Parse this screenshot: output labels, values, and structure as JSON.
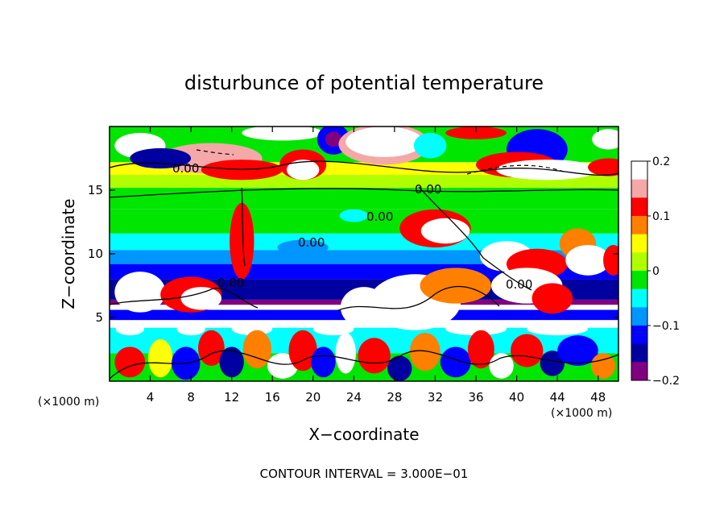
{
  "chart_data": {
    "type": "heatmap",
    "title": "disturbunce of potential temperature",
    "xlabel": "X−coordinate",
    "ylabel": "Z−coordinate",
    "x_unit_left": "(×1000 m)",
    "x_unit_right": "(×1000 m)",
    "xlim": [
      0,
      50
    ],
    "ylim": [
      0,
      20
    ],
    "x_ticks": [
      4,
      8,
      12,
      16,
      20,
      24,
      28,
      32,
      36,
      40,
      44,
      48
    ],
    "y_ticks": [
      5,
      10,
      15
    ],
    "x_tick_labels": [
      "4",
      "8",
      "12",
      "16",
      "20",
      "24",
      "28",
      "32",
      "36",
      "40",
      "44",
      "48"
    ],
    "y_tick_labels": [
      "5",
      "10",
      "15"
    ],
    "colorbar": {
      "min": -0.2,
      "max": 0.2,
      "ticks": [
        0.2,
        0.1,
        0,
        -0.1,
        -0.2
      ],
      "tick_labels": [
        "0.2",
        "0.1",
        "0",
        "−0.1",
        "−0.2"
      ],
      "colors": [
        "#ffffff",
        "#f5a8a8",
        "#ff0000",
        "#ff7f00",
        "#ffff00",
        "#b0ff00",
        "#00e600",
        "#00ffff",
        "#0096ff",
        "#0000ff",
        "#0000a0",
        "#800080"
      ]
    },
    "contour_labels": [
      "0.00",
      "0.00",
      "0.00",
      "0.00",
      "0.00",
      "0.00"
    ],
    "footnote": "CONTOUR INTERVAL = 3.000E−01",
    "grid": false,
    "legend": "right"
  }
}
